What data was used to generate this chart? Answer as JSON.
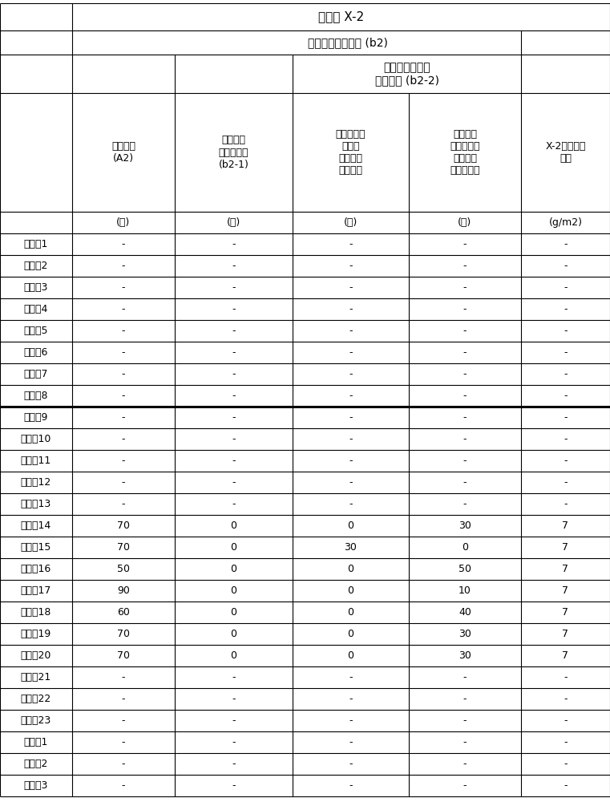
{
  "title_row": "前体片 X-2",
  "subheader1": "氧化纤维前体纤维 (b2)",
  "subheader2_line1": "原纤状氧化纤维",
  "subheader2_line2": "前体纤维 (b2-2)",
  "col_headers": [
    "碳短纤维\n(A2)",
    "氧化纤维\n前体短纤维\n(b2-1)",
    "分支出多个\n原纤的\n氧化纤维\n前体纤维",
    "通过打浆\n而原纤化的\n氧化纤维\n前体短纤维",
    "X-2单位面积\n重量"
  ],
  "units_row": [
    "(份)",
    "(份)",
    "(份)",
    "(份)",
    "(g/m2)"
  ],
  "row_labels": [
    "实施例1",
    "实施例2",
    "实施例3",
    "实施例4",
    "实施例5",
    "实施例6",
    "实施例7",
    "实施例8",
    "实施例9",
    "实施例10",
    "实施例11",
    "实施例12",
    "实施例13",
    "实施例14",
    "实施例15",
    "实施例16",
    "实施例17",
    "实施例18",
    "实施例19",
    "实施例20",
    "实施例21",
    "实施例22",
    "实施例23",
    "比较例1",
    "比较例2",
    "比较例3"
  ],
  "data": [
    [
      "-",
      "-",
      "-",
      "-",
      "-"
    ],
    [
      "-",
      "-",
      "-",
      "-",
      "-"
    ],
    [
      "-",
      "-",
      "-",
      "-",
      "-"
    ],
    [
      "-",
      "-",
      "-",
      "-",
      "-"
    ],
    [
      "-",
      "-",
      "-",
      "-",
      "-"
    ],
    [
      "-",
      "-",
      "-",
      "-",
      "-"
    ],
    [
      "-",
      "-",
      "-",
      "-",
      "-"
    ],
    [
      "-",
      "-",
      "-",
      "-",
      "-"
    ],
    [
      "-",
      "-",
      "-",
      "-",
      "-"
    ],
    [
      "-",
      "-",
      "-",
      "-",
      "-"
    ],
    [
      "-",
      "-",
      "-",
      "-",
      "-"
    ],
    [
      "-",
      "-",
      "-",
      "-",
      "-"
    ],
    [
      "-",
      "-",
      "-",
      "-",
      "-"
    ],
    [
      "70",
      "0",
      "0",
      "30",
      "7"
    ],
    [
      "70",
      "0",
      "30",
      "0",
      "7"
    ],
    [
      "50",
      "0",
      "0",
      "50",
      "7"
    ],
    [
      "90",
      "0",
      "0",
      "10",
      "7"
    ],
    [
      "60",
      "0",
      "0",
      "40",
      "7"
    ],
    [
      "70",
      "0",
      "0",
      "30",
      "7"
    ],
    [
      "70",
      "0",
      "0",
      "30",
      "7"
    ],
    [
      "-",
      "-",
      "-",
      "-",
      "-"
    ],
    [
      "-",
      "-",
      "-",
      "-",
      "-"
    ],
    [
      "-",
      "-",
      "-",
      "-",
      "-"
    ],
    [
      "-",
      "-",
      "-",
      "-",
      "-"
    ],
    [
      "-",
      "-",
      "-",
      "-",
      "-"
    ],
    [
      "-",
      "-",
      "-",
      "-",
      "-"
    ]
  ],
  "thick_border_after_row_index": 7,
  "bg_color": "#ffffff",
  "line_color": "#000000",
  "text_color": "#000000",
  "title_fontsize": 11,
  "subh_fontsize": 10,
  "header_fontsize": 9,
  "data_fontsize": 9
}
